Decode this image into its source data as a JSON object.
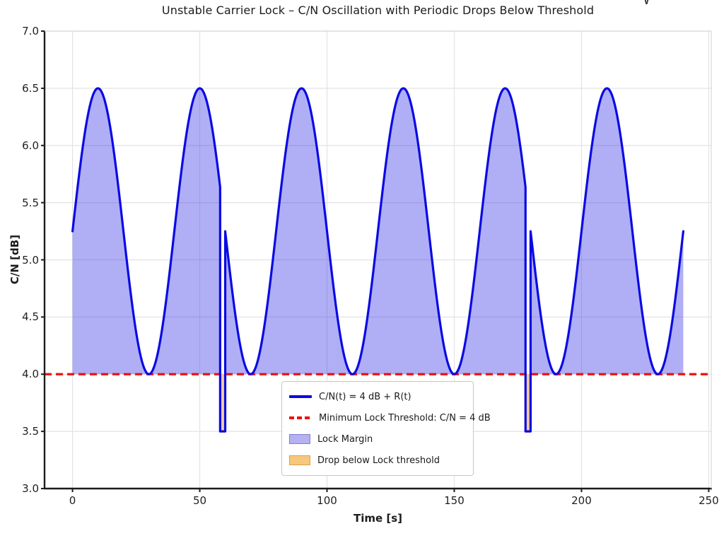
{
  "figure": {
    "background": "#ffffff",
    "text_color": "#1f1f1f",
    "grid_color": "#e3e3e3",
    "spine_color": "#1c1c1c",
    "minor_spine_color": "#d8d8d8",
    "stray_glyph": "∨"
  },
  "chart_data": {
    "type": "line",
    "title": "Unstable Carrier Lock – C/N Oscillation with Periodic Drops Below Threshold",
    "xlabel": "Time [s]",
    "ylabel": "C/N [dB]",
    "xlim": [
      -11,
      251
    ],
    "ylim": [
      3.0,
      7.0
    ],
    "xticks": [
      0,
      50,
      100,
      150,
      200,
      250
    ],
    "yticks": [
      3.0,
      3.5,
      4.0,
      4.5,
      5.0,
      5.5,
      6.0,
      6.5,
      7.0
    ],
    "grid": true,
    "series": [
      {
        "name": "C/N(t) = 4 dB + R(t)",
        "color": "#0a0ae4",
        "line_width": 3.2,
        "model": {
          "type": "sine",
          "mean_db": 5.25,
          "amplitude_db": 1.25,
          "period_s": 40,
          "t_start": 0,
          "t_end": 240
        },
        "drops": [
          {
            "t_start": 58,
            "t_end": 60,
            "value_db": 3.5
          },
          {
            "t_start": 178,
            "t_end": 180,
            "value_db": 3.5
          }
        ],
        "key_points": {
          "start": [
            0,
            5.25
          ],
          "end": [
            240,
            5.25
          ],
          "peaks_t": [
            10,
            50,
            90,
            130,
            170,
            210
          ],
          "peak_db": 6.5,
          "troughs_t": [
            30,
            70,
            110,
            150,
            190,
            230
          ],
          "trough_db": 4.0,
          "drop_db": 3.5
        }
      }
    ],
    "threshold": {
      "value_db": 4.0,
      "color": "#ee1111",
      "style": "dashed",
      "line_width": 3.2
    },
    "fills": [
      {
        "name": "Lock Margin",
        "between": "curve and threshold",
        "where": "curve >= 4.0",
        "color": "rgba(30,25,230,0.35)"
      },
      {
        "name": "Drop below Lock threshold",
        "between": "curve and threshold",
        "where": "curve < 4.0",
        "color": "rgba(230,140,30,0.45)"
      }
    ],
    "legend": {
      "position": "lower center",
      "entries": [
        {
          "label": "C/N(t) = 4 dB + R(t)",
          "swatch": "line",
          "color": "#0a0ae4",
          "edge": "#0a0ae4"
        },
        {
          "label": "Minimum Lock Threshold: C/N = 4 dB",
          "swatch": "dashed-line",
          "color": "#ee1111",
          "edge": "#ee1111"
        },
        {
          "label": "Lock Margin",
          "swatch": "patch",
          "color": "#b5b1f2",
          "edge": "#827dd6"
        },
        {
          "label": "Drop below Lock threshold",
          "swatch": "patch",
          "color": "#f6c87d",
          "edge": "#d9a24a"
        }
      ]
    }
  }
}
